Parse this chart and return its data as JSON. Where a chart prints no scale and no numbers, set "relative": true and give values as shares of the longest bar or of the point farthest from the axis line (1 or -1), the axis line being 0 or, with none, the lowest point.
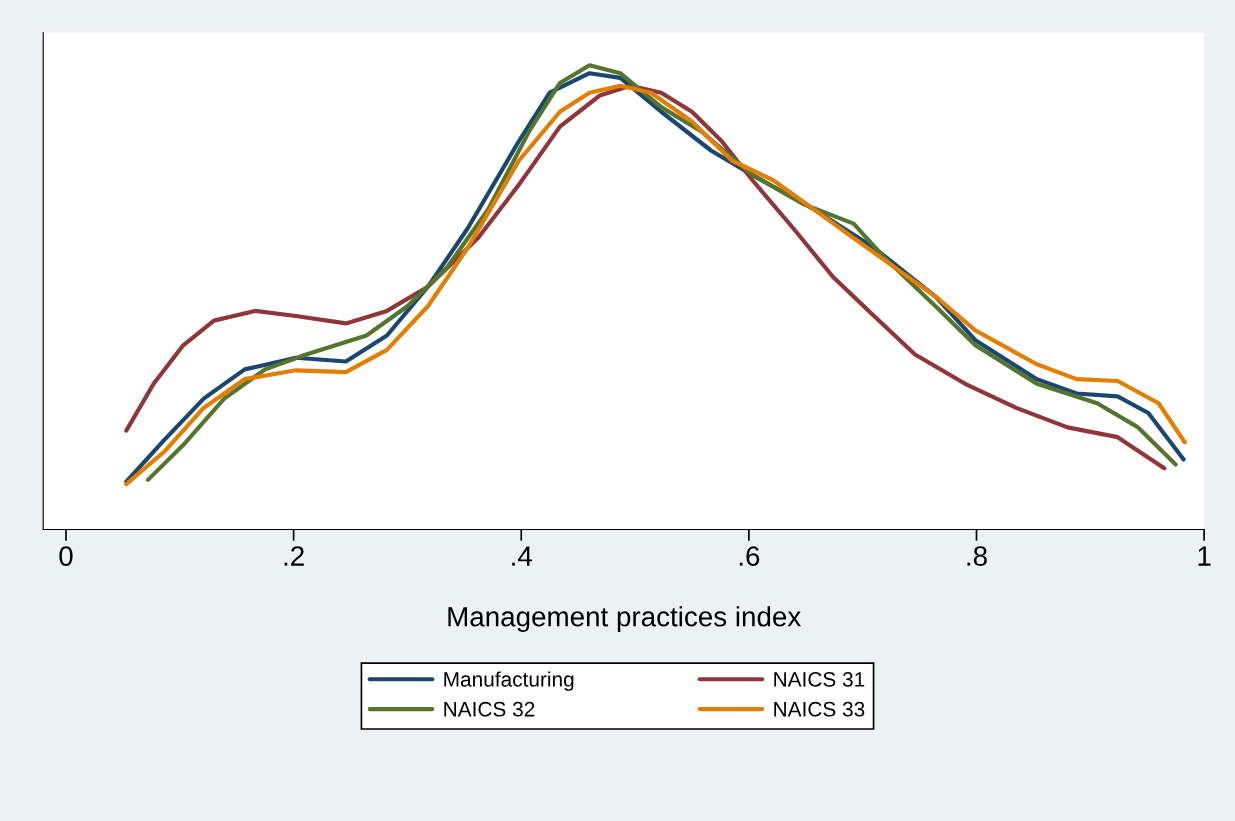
{
  "chart_data": {
    "type": "line",
    "xlabel": "Management practices index",
    "relative": true,
    "xlim": [
      -0.02,
      1.0
    ],
    "xticks": [
      0,
      {
        "value": 0.2,
        "label": ".2"
      },
      {
        "value": 0.4,
        "label": ".4"
      },
      {
        "value": 0.6,
        "label": ".6"
      },
      {
        "value": 0.8,
        "label": ".8"
      },
      1
    ],
    "legend": "bottom",
    "grid": false,
    "marker": "none",
    "line_style": "solid",
    "series": [
      {
        "name": "Manufacturing",
        "color": "#1a476f",
        "x": [
          0.053,
          0.086,
          0.121,
          0.157,
          0.202,
          0.246,
          0.282,
          0.318,
          0.353,
          0.398,
          0.425,
          0.46,
          0.487,
          0.523,
          0.567,
          0.603,
          0.657,
          0.71,
          0.764,
          0.799,
          0.853,
          0.888,
          0.924,
          0.951,
          0.982
        ],
        "values": [
          0.103,
          0.192,
          0.282,
          0.345,
          0.37,
          0.362,
          0.418,
          0.523,
          0.649,
          0.837,
          0.941,
          0.983,
          0.973,
          0.9,
          0.816,
          0.764,
          0.69,
          0.607,
          0.502,
          0.408,
          0.324,
          0.293,
          0.287,
          0.251,
          0.151
        ]
      },
      {
        "name": "NAICS 31",
        "color": "#90353b",
        "x": [
          0.053,
          0.077,
          0.103,
          0.13,
          0.166,
          0.202,
          0.246,
          0.282,
          0.318,
          0.362,
          0.398,
          0.434,
          0.469,
          0.496,
          0.523,
          0.55,
          0.576,
          0.603,
          0.639,
          0.674,
          0.71,
          0.746,
          0.79,
          0.835,
          0.88,
          0.924,
          0.965
        ],
        "values": [
          0.213,
          0.314,
          0.397,
          0.45,
          0.471,
          0.46,
          0.444,
          0.471,
          0.523,
          0.628,
          0.743,
          0.868,
          0.935,
          0.956,
          0.941,
          0.9,
          0.837,
          0.753,
          0.649,
          0.544,
          0.46,
          0.377,
          0.314,
          0.262,
          0.22,
          0.199,
          0.132
        ]
      },
      {
        "name": "NAICS 32",
        "color": "#55752f",
        "x": [
          0.072,
          0.103,
          0.139,
          0.175,
          0.211,
          0.264,
          0.3,
          0.335,
          0.371,
          0.407,
          0.434,
          0.46,
          0.487,
          0.523,
          0.558,
          0.603,
          0.648,
          0.692,
          0.719,
          0.764,
          0.799,
          0.853,
          0.906,
          0.942,
          0.975
        ],
        "values": [
          0.107,
          0.182,
          0.282,
          0.345,
          0.377,
          0.418,
          0.481,
          0.565,
          0.69,
          0.858,
          0.962,
          1.0,
          0.983,
          0.91,
          0.858,
          0.764,
          0.701,
          0.659,
          0.586,
          0.481,
          0.397,
          0.314,
          0.272,
          0.22,
          0.14
        ]
      },
      {
        "name": "NAICS 33",
        "color": "#e37e00",
        "x": [
          0.053,
          0.086,
          0.121,
          0.157,
          0.202,
          0.246,
          0.282,
          0.318,
          0.353,
          0.398,
          0.434,
          0.46,
          0.487,
          0.514,
          0.55,
          0.585,
          0.621,
          0.657,
          0.692,
          0.728,
          0.764,
          0.799,
          0.853,
          0.888,
          0.924,
          0.96,
          0.983
        ],
        "values": [
          0.098,
          0.167,
          0.262,
          0.324,
          0.343,
          0.339,
          0.387,
          0.481,
          0.607,
          0.795,
          0.9,
          0.941,
          0.956,
          0.941,
          0.879,
          0.795,
          0.753,
          0.69,
          0.628,
          0.565,
          0.502,
          0.429,
          0.356,
          0.324,
          0.32,
          0.272,
          0.188
        ]
      }
    ]
  }
}
